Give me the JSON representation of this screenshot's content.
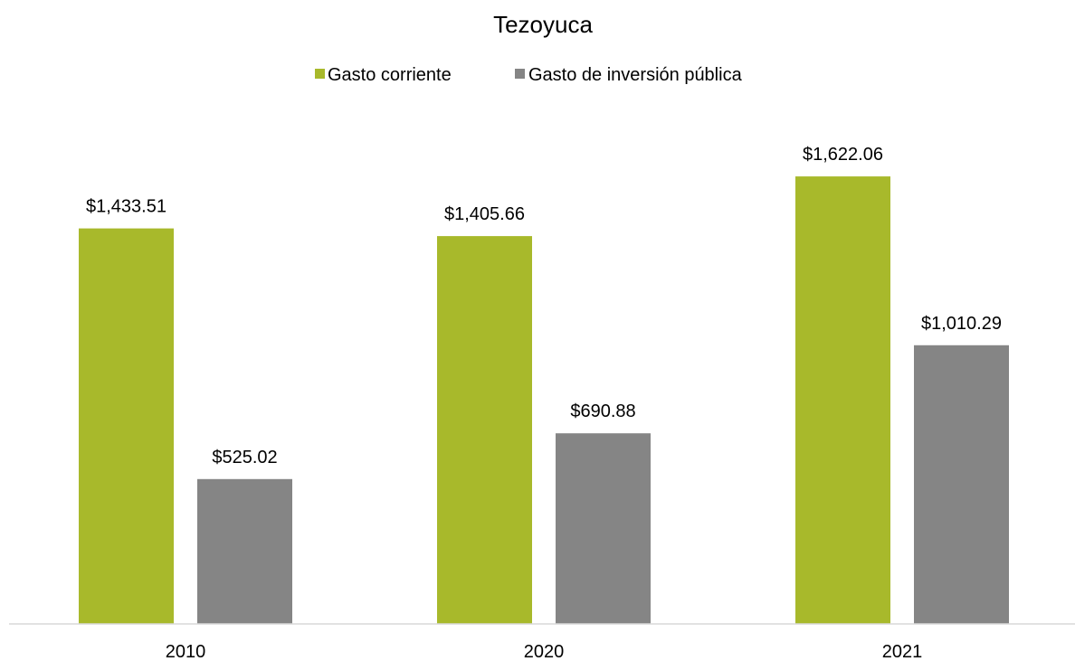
{
  "chart_data": {
    "type": "bar",
    "title": "Tezoyuca",
    "xlabel": "",
    "ylabel": "",
    "categories": [
      "2010",
      "2020",
      "2021"
    ],
    "series": [
      {
        "name": "Gasto corriente",
        "color": "#A8B92B",
        "values": [
          1433.51,
          1405.66,
          1622.06
        ],
        "labels": [
          "$1,433.51",
          "$1,405.66",
          "$1,622.06"
        ]
      },
      {
        "name": "Gasto de inversión pública",
        "color": "#858585",
        "values": [
          525.02,
          690.88,
          1010.29
        ],
        "labels": [
          "$525.02",
          "$690.88",
          "$1,010.29"
        ]
      }
    ],
    "ylim": [
      0,
      1800
    ],
    "grid": false,
    "legend_position": "top-center",
    "axis_color": "#D9D9D9"
  }
}
